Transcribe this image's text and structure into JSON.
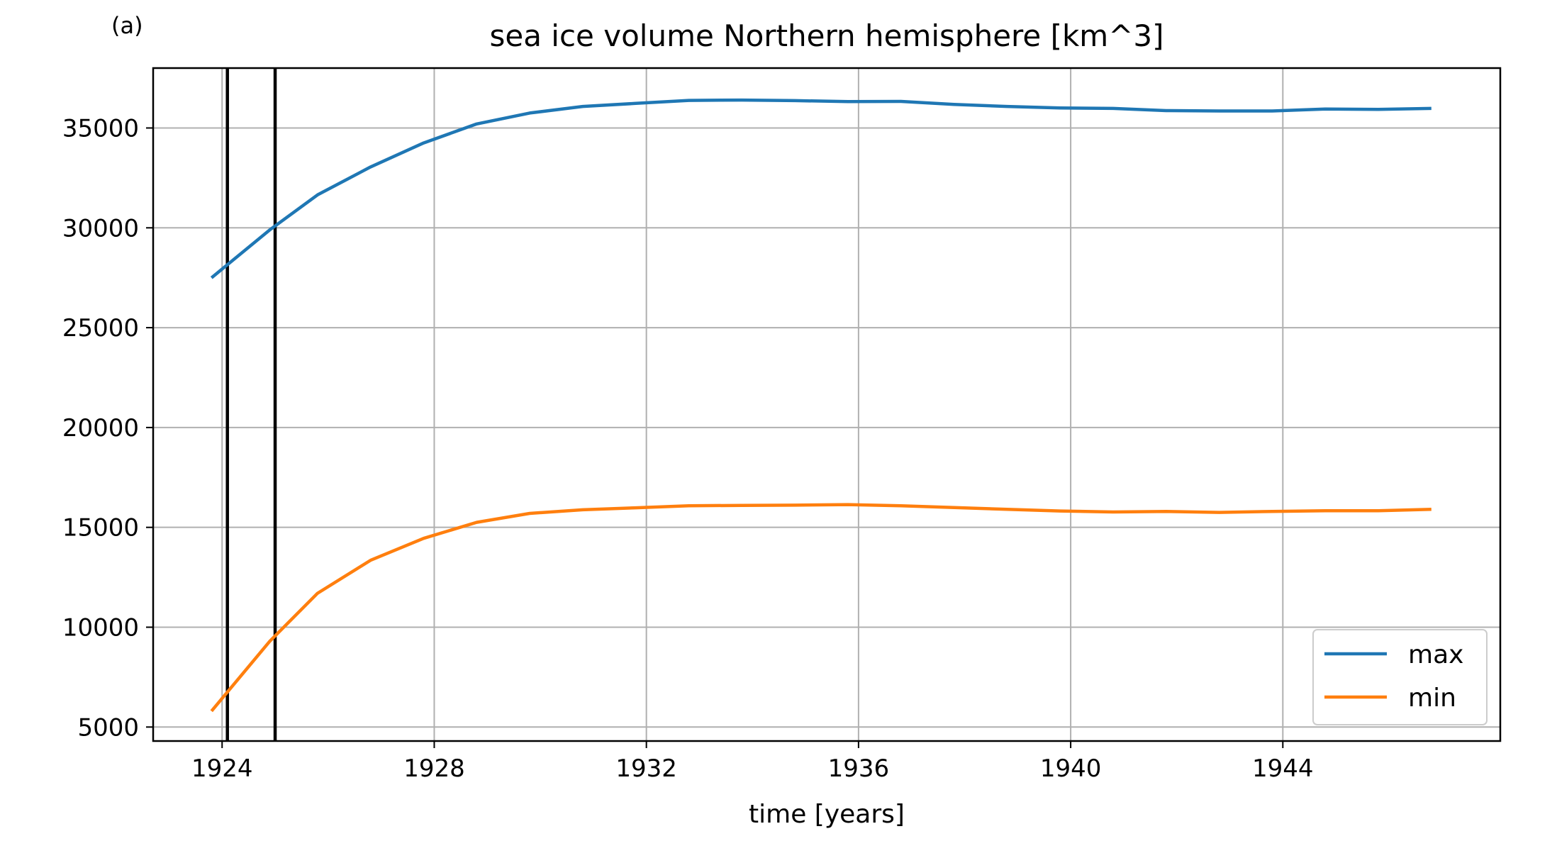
{
  "chart_data": {
    "type": "line",
    "panel_label": "(a)",
    "title": "sea ice volume Northern hemisphere [km^3]",
    "xlabel": "time [years]",
    "ylabel": "",
    "xlim": [
      1922.7,
      1948.1
    ],
    "ylim": [
      4300,
      38000
    ],
    "x_ticks": [
      1924,
      1928,
      1932,
      1936,
      1940,
      1944
    ],
    "x_tick_labels": [
      "1924",
      "1928",
      "1932",
      "1936",
      "1940",
      "1944"
    ],
    "y_ticks": [
      5000,
      10000,
      15000,
      20000,
      25000,
      30000,
      35000
    ],
    "y_tick_labels": [
      "5000",
      "10000",
      "15000",
      "20000",
      "25000",
      "30000",
      "35000"
    ],
    "grid": true,
    "legend_position": "lower-right",
    "vertical_lines": [
      1924.1,
      1925.0
    ],
    "x": [
      1923.8,
      1924.9,
      1925.8,
      1926.8,
      1927.8,
      1928.8,
      1929.8,
      1930.8,
      1931.8,
      1932.8,
      1933.8,
      1934.8,
      1935.8,
      1936.8,
      1937.8,
      1938.8,
      1939.8,
      1940.8,
      1941.8,
      1942.8,
      1943.8,
      1944.8,
      1945.8,
      1946.8
    ],
    "series": [
      {
        "name": "max",
        "color": "#1f77b4",
        "values": [
          27500,
          29900,
          31650,
          33050,
          34250,
          35200,
          35750,
          36080,
          36230,
          36380,
          36400,
          36370,
          36320,
          36330,
          36180,
          36080,
          36000,
          35980,
          35870,
          35850,
          35850,
          35950,
          35930,
          35980
        ]
      },
      {
        "name": "min",
        "color": "#ff7f0e",
        "values": [
          5800,
          9300,
          11700,
          13350,
          14450,
          15250,
          15700,
          15880,
          15980,
          16080,
          16100,
          16110,
          16140,
          16080,
          15990,
          15900,
          15820,
          15770,
          15800,
          15750,
          15800,
          15830,
          15830,
          15900
        ]
      }
    ]
  }
}
